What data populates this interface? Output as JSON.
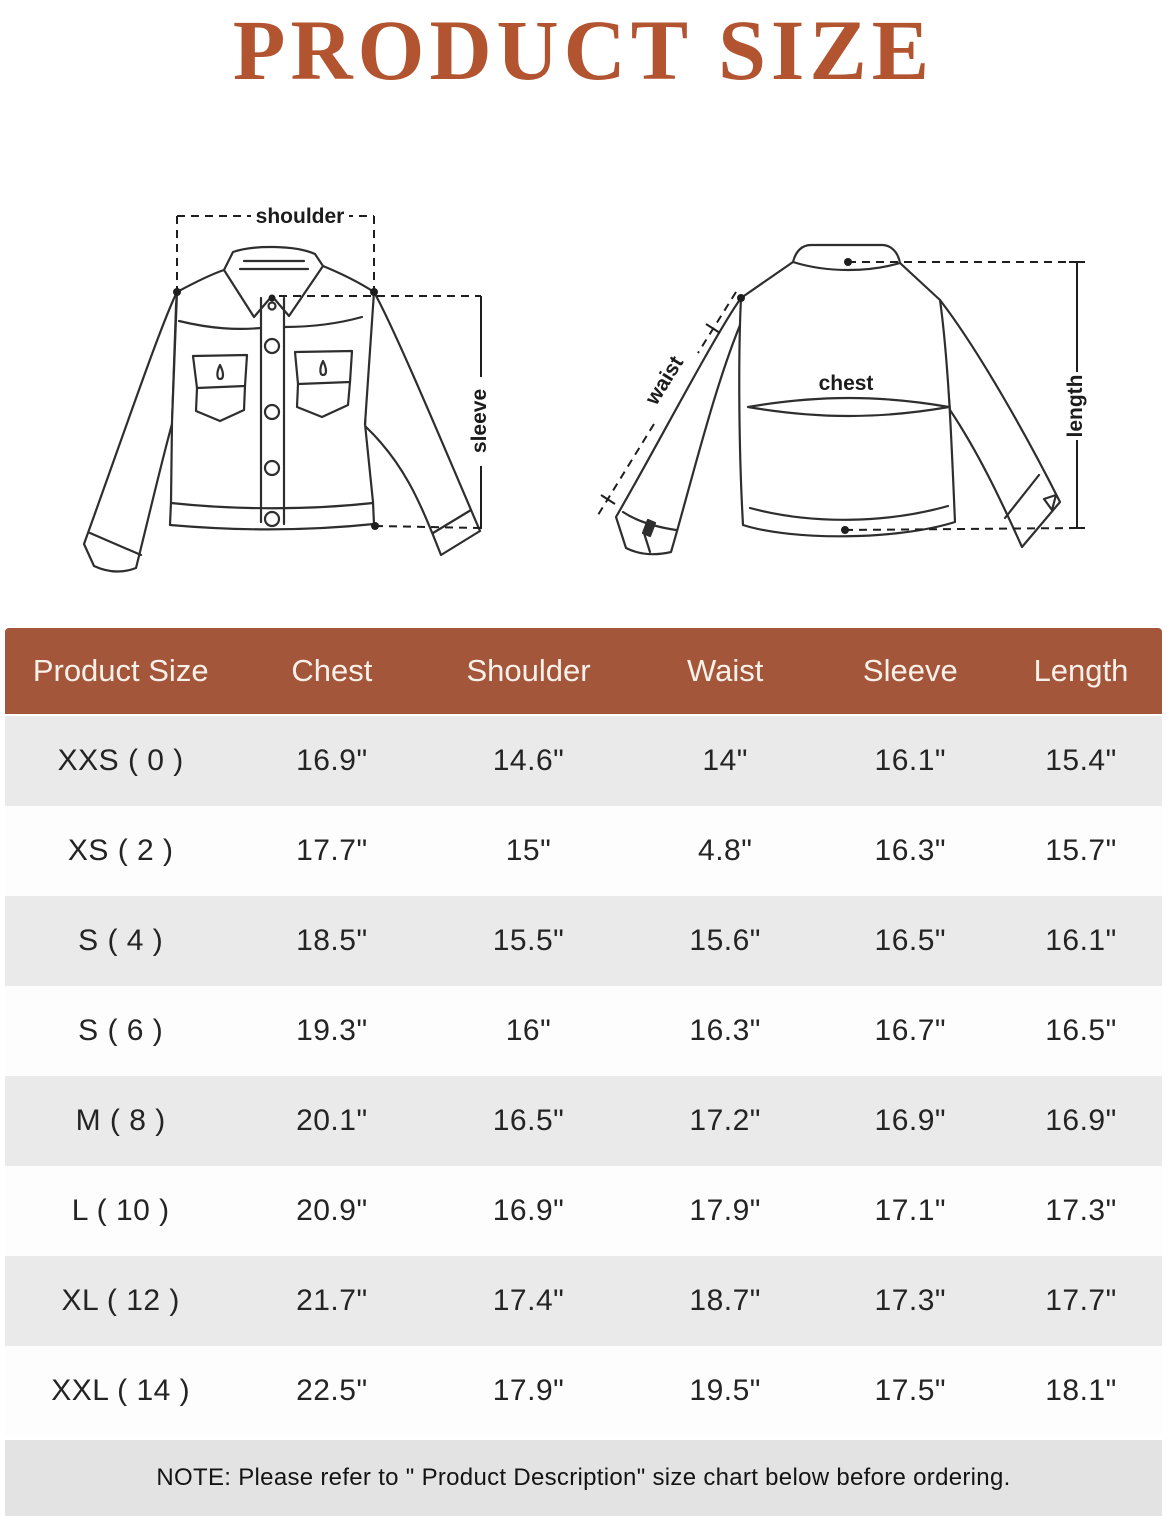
{
  "title": "PRODUCT SIZE",
  "diagram": {
    "front_labels": {
      "shoulder": "shoulder",
      "sleeve": "sleeve"
    },
    "back_labels": {
      "waist": "waist",
      "chest": "chest",
      "length": "length"
    }
  },
  "table": {
    "columns": [
      "Product Size",
      "Chest",
      "Shoulder",
      "Waist",
      "Sleeve",
      "Length"
    ],
    "rows": [
      [
        "XXS ( 0 )",
        "16.9\"",
        "14.6\"",
        "14\"",
        "16.1\"",
        "15.4\""
      ],
      [
        "XS ( 2 )",
        "17.7\"",
        "15\"",
        "4.8\"",
        "16.3\"",
        "15.7\""
      ],
      [
        "S ( 4 )",
        "18.5\"",
        "15.5\"",
        "15.6\"",
        "16.5\"",
        "16.1\""
      ],
      [
        "S ( 6 )",
        "19.3\"",
        "16\"",
        "16.3\"",
        "16.7\"",
        "16.5\""
      ],
      [
        "M ( 8 )",
        "20.1\"",
        "16.5\"",
        "17.2\"",
        "16.9\"",
        "16.9\""
      ],
      [
        "L ( 10 )",
        "20.9\"",
        "16.9\"",
        "17.9\"",
        "17.1\"",
        "17.3\""
      ],
      [
        "XL ( 12 )",
        "21.7\"",
        "17.4\"",
        "18.7\"",
        "17.3\"",
        "17.7\""
      ],
      [
        "XXL ( 14 )",
        "22.5\"",
        "17.9\"",
        "19.5\"",
        "17.5\"",
        "18.1\""
      ]
    ]
  },
  "note": {
    "text": "NOTE: Please refer to \" Product Description\" size chart below before ordering."
  },
  "colors": {
    "accent_title": "#b25430",
    "table_header_bg": "#a4563a",
    "table_header_text": "#f8f1ea",
    "row_alt_bg": "#eaeaea",
    "note_bg": "#e3e3e3",
    "line_art": "#2e2e2e"
  }
}
